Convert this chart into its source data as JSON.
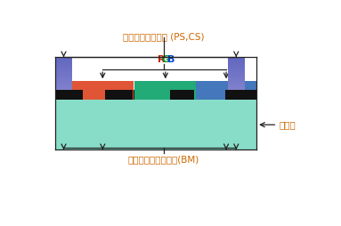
{
  "fig_width": 3.83,
  "fig_height": 2.54,
  "dpi": 100,
  "bg_color": "#ffffff",
  "label_top": "フォトスペーサー (PS,CS)",
  "label_rgb": "RGB",
  "label_bottom": "ブラックマトリクス(BM)",
  "label_glass": "ガラス",
  "label_color": "#3399cc",
  "top_label_color": "#cc6600",
  "glass_color": "#88ddc8",
  "bm_color": "#111111",
  "red_filter_color": "#e05535",
  "green_filter_color": "#22aa77",
  "blue_filter_color": "#4477bb",
  "arrow_color": "#222222",
  "border_color": "#222222",
  "font_size_label": 7.5,
  "font_size_rgb": 8
}
